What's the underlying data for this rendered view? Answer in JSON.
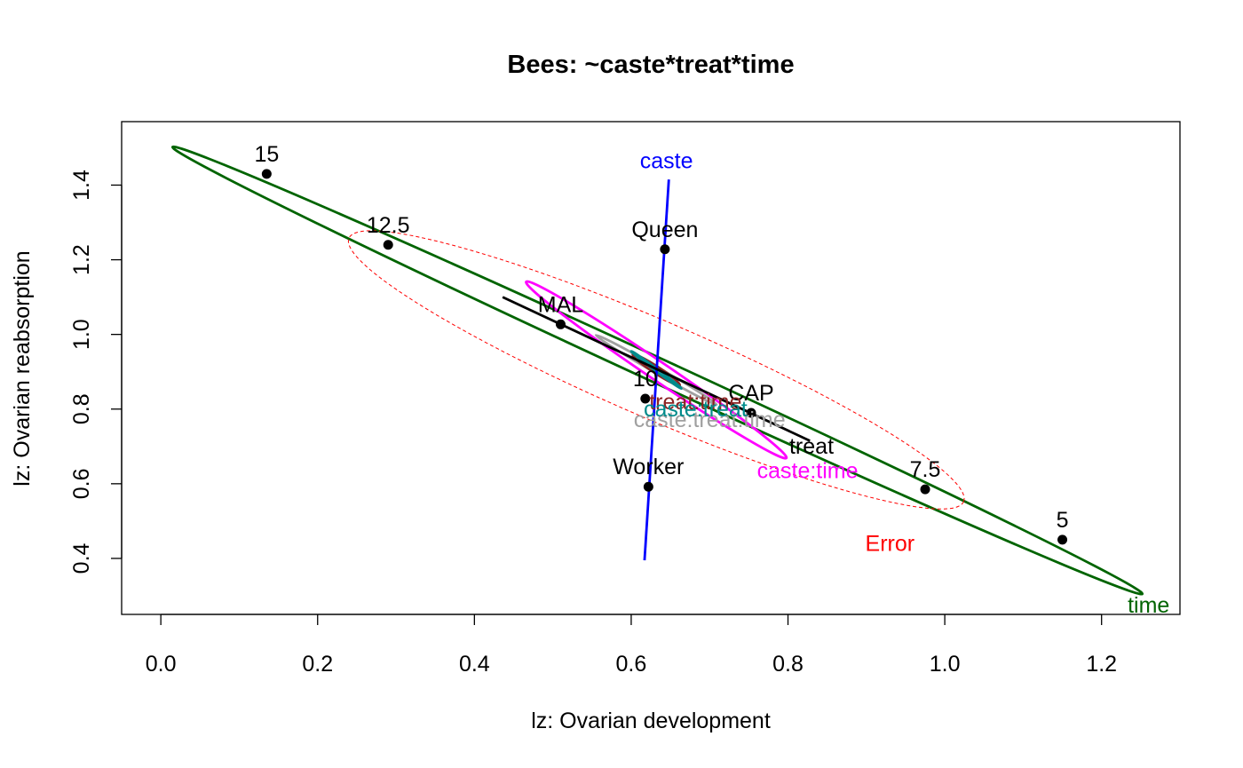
{
  "chart_data": {
    "type": "scatter",
    "title": "Bees: ~caste*treat*time",
    "xlabel": "lz: Ovarian development",
    "ylabel": "lz: Ovarian reabsorption",
    "xlim": [
      -0.05,
      1.3
    ],
    "ylim": [
      0.25,
      1.57
    ],
    "xticks": [
      "0.0",
      "0.2",
      "0.4",
      "0.6",
      "0.8",
      "1.0",
      "1.2"
    ],
    "xtick_values": [
      0.0,
      0.2,
      0.4,
      0.6,
      0.8,
      1.0,
      1.2
    ],
    "yticks": [
      "0.4",
      "0.6",
      "0.8",
      "1.0",
      "1.2",
      "1.4"
    ],
    "ytick_values": [
      0.4,
      0.6,
      0.8,
      1.0,
      1.2,
      1.4
    ],
    "grid": false,
    "points": [
      {
        "label": "15",
        "x": 0.135,
        "y": 1.43,
        "term": "time"
      },
      {
        "label": "12.5",
        "x": 0.29,
        "y": 1.24,
        "term": "time"
      },
      {
        "label": "10",
        "x": 0.618,
        "y": 0.828,
        "term": "time"
      },
      {
        "label": "7.5",
        "x": 0.975,
        "y": 0.585,
        "term": "time"
      },
      {
        "label": "5",
        "x": 1.15,
        "y": 0.45,
        "term": "time"
      },
      {
        "label": "Queen",
        "x": 0.643,
        "y": 1.228,
        "term": "caste"
      },
      {
        "label": "Worker",
        "x": 0.622,
        "y": 0.592,
        "term": "caste"
      },
      {
        "label": "MAL",
        "x": 0.51,
        "y": 1.027,
        "term": "treat"
      },
      {
        "label": "CAP",
        "x": 0.753,
        "y": 0.79,
        "term": "treat"
      }
    ],
    "ellipses": [
      {
        "name": "time",
        "color": "#006400",
        "center": [
          0.632,
          0.905
        ],
        "line_ends": [
          [
            0.015,
            1.502
          ],
          [
            1.252,
            0.305
          ]
        ],
        "half_width": 0.033,
        "dashed": false,
        "label_at": [
          1.26,
          0.255
        ]
      },
      {
        "name": "Error",
        "color": "#FF0000",
        "center": [
          0.632,
          0.905
        ],
        "line_ends": [
          [
            0.24,
            1.258
          ],
          [
            1.024,
            0.552
          ]
        ],
        "half_width": 0.13,
        "dashed": true,
        "label_at": [
          0.93,
          0.42
        ]
      },
      {
        "name": "caste:time",
        "color": "#FF00FF",
        "center": [
          0.632,
          0.905
        ],
        "line_ends": [
          [
            0.466,
            1.141
          ],
          [
            0.798,
            0.669
          ]
        ],
        "half_width": 0.025,
        "dashed": false,
        "label_at": [
          0.825,
          0.615
        ]
      },
      {
        "name": "caste:treat:time",
        "color": "#A0A0A0",
        "center": [
          0.632,
          0.905
        ],
        "line_ends": [
          [
            0.555,
            0.998
          ],
          [
            0.709,
            0.812
          ]
        ],
        "half_width": 0.008,
        "dashed": false,
        "label_at": [
          0.7,
          0.752
        ]
      },
      {
        "name": "treat:time",
        "color": "#8B2323",
        "center": [
          0.632,
          0.905
        ],
        "line_ends": [
          [
            0.602,
            0.946
          ],
          [
            0.662,
            0.864
          ]
        ],
        "half_width": 0.009,
        "dashed": false,
        "label_at": [
          0.682,
          0.8
        ]
      },
      {
        "name": "caste:treat",
        "color": "#008B8B",
        "center": [
          0.632,
          0.905
        ],
        "line_ends": [
          [
            0.6,
            0.955
          ],
          [
            0.664,
            0.855
          ]
        ],
        "half_width": 0.003,
        "dashed": false,
        "label_at": [
          0.682,
          0.78
        ]
      }
    ],
    "lines": [
      {
        "name": "caste",
        "color": "#0000FF",
        "from": [
          0.617,
          0.395
        ],
        "to": [
          0.648,
          1.415
        ],
        "label_at": [
          0.645,
          1.445
        ]
      },
      {
        "name": "treat",
        "color": "#000000",
        "from": [
          0.436,
          1.1
        ],
        "to": [
          0.828,
          0.715
        ],
        "label_at": [
          0.83,
          0.68
        ]
      }
    ]
  }
}
